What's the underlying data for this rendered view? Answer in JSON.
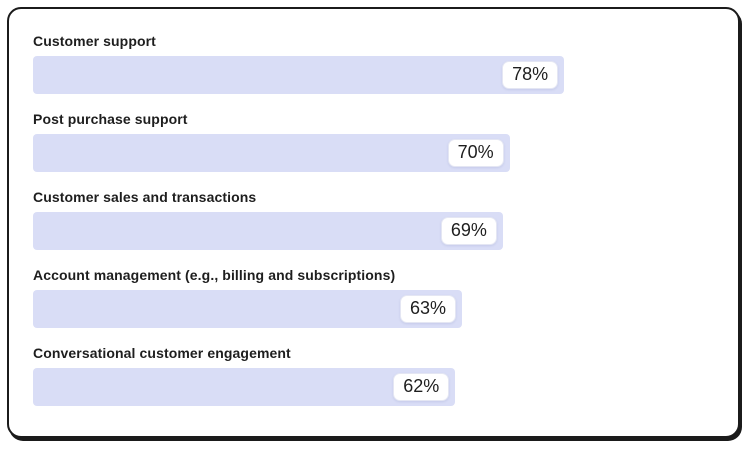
{
  "card": {
    "border_color": "#1b1b1b",
    "background": "#ffffff"
  },
  "chart_data": {
    "type": "bar",
    "orientation": "horizontal",
    "title": "",
    "xlabel": "",
    "ylabel": "",
    "xlim": [
      0,
      100
    ],
    "grid": false,
    "legend": false,
    "bar_color": "#d9ddf6",
    "value_label_style": "white rounded badge inside bar, right-aligned",
    "categories": [
      "Customer support",
      "Post purchase support",
      "Customer sales and transactions",
      "Account management (e.g., billing and subscriptions)",
      "Conversational customer engagement"
    ],
    "values": [
      78,
      70,
      69,
      63,
      62
    ],
    "value_labels": [
      "78%",
      "70%",
      "69%",
      "63%",
      "62%"
    ]
  }
}
